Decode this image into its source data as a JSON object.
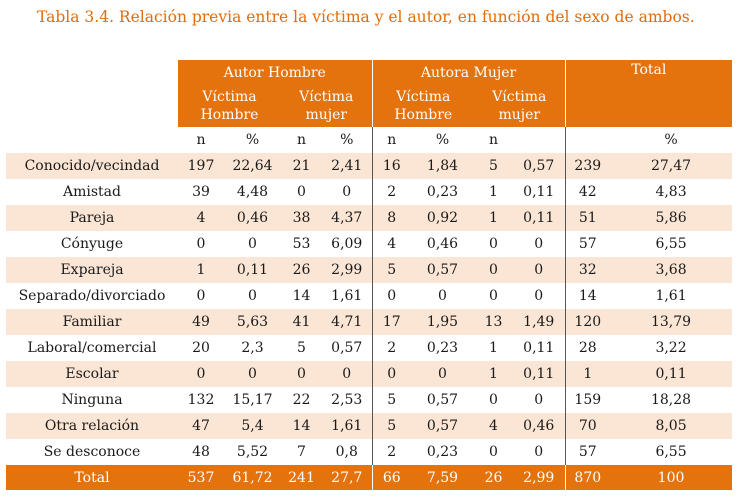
{
  "title": "Tabla 3.4. Relación previa entre la víctima y el autor, en función del sexo de ambos.",
  "header": {
    "autor_hombre": "Autor Hombre",
    "autora_mujer": "Autora Mujer",
    "total": "Total",
    "victima_hombre_1": "Víctima",
    "victima_hombre_2": "Hombre",
    "victima_mujer_1": "Víctima",
    "victima_mujer_2": "mujer",
    "n": "n",
    "pct": "%"
  },
  "rows": [
    {
      "label": "Conocido/vecindad",
      "v": [
        "197",
        "22,64",
        "21",
        "2,41",
        "16",
        "1,84",
        "5",
        "0,57",
        "239",
        "27,47"
      ]
    },
    {
      "label": "Amistad",
      "v": [
        "39",
        "4,48",
        "0",
        "0",
        "2",
        "0,23",
        "1",
        "0,11",
        "42",
        "4,83"
      ]
    },
    {
      "label": "Pareja",
      "v": [
        "4",
        "0,46",
        "38",
        "4,37",
        "8",
        "0,92",
        "1",
        "0,11",
        "51",
        "5,86"
      ]
    },
    {
      "label": "Cónyuge",
      "v": [
        "0",
        "0",
        "53",
        "6,09",
        "4",
        "0,46",
        "0",
        "0",
        "57",
        "6,55"
      ]
    },
    {
      "label": "Expareja",
      "v": [
        "1",
        "0,11",
        "26",
        "2,99",
        "5",
        "0,57",
        "0",
        "0",
        "32",
        "3,68"
      ]
    },
    {
      "label": "Separado/divorciado",
      "v": [
        "0",
        "0",
        "14",
        "1,61",
        "0",
        "0",
        "0",
        "0",
        "14",
        "1,61"
      ]
    },
    {
      "label": "Familiar",
      "v": [
        "49",
        "5,63",
        "41",
        "4,71",
        "17",
        "1,95",
        "13",
        "1,49",
        "120",
        "13,79"
      ]
    },
    {
      "label": "Laboral/comercial",
      "v": [
        "20",
        "2,3",
        "5",
        "0,57",
        "2",
        "0,23",
        "1",
        "0,11",
        "28",
        "3,22"
      ]
    },
    {
      "label": "Escolar",
      "v": [
        "0",
        "0",
        "0",
        "0",
        "0",
        "0",
        "1",
        "0,11",
        "1",
        "0,11"
      ]
    },
    {
      "label": "Ninguna",
      "v": [
        "132",
        "15,17",
        "22",
        "2,53",
        "5",
        "0,57",
        "0",
        "0",
        "159",
        "18,28"
      ]
    },
    {
      "label": "Otra relación",
      "v": [
        "47",
        "5,4",
        "14",
        "1,61",
        "5",
        "0,57",
        "4",
        "0,46",
        "70",
        "8,05"
      ]
    },
    {
      "label": "Se desconoce",
      "v": [
        "48",
        "5,52",
        "7",
        "0,8",
        "2",
        "0,23",
        "0",
        "0",
        "57",
        "6,55"
      ]
    }
  ],
  "total_row": {
    "label": "Total",
    "v": [
      "537",
      "61,72",
      "241",
      "27,7",
      "66",
      "7,59",
      "26",
      "2,99",
      "870",
      "100"
    ]
  },
  "colors": {
    "accent": "#e4720d",
    "shade": "#fbe5d4",
    "title": "#e36c0a"
  }
}
